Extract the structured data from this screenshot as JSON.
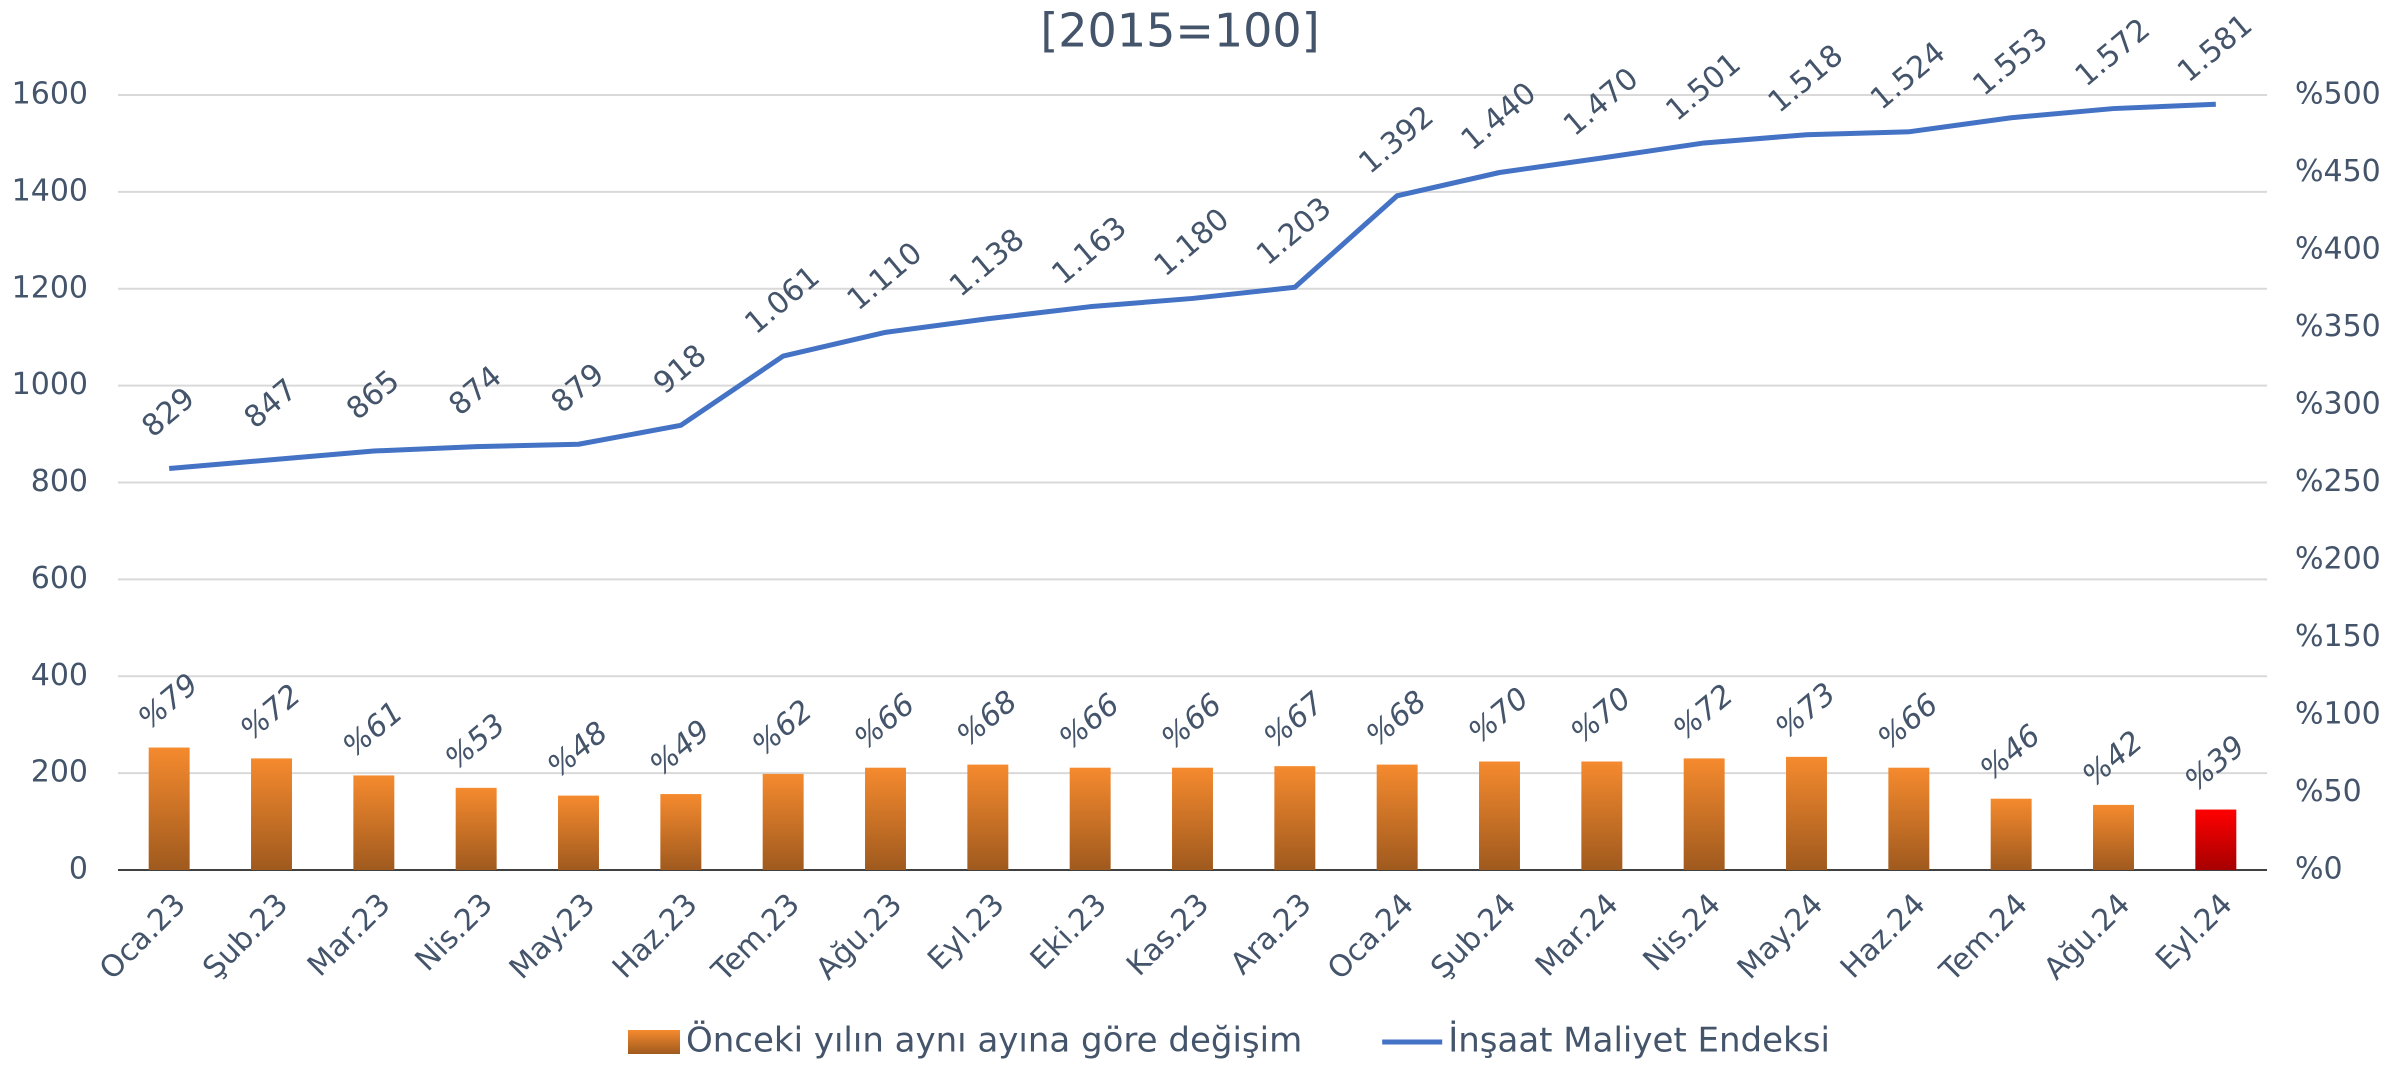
{
  "chart_data": {
    "type": "combo",
    "title": "[2015=100]",
    "categories": [
      "Oca.23",
      "Şub.23",
      "Mar.23",
      "Nis.23",
      "May.23",
      "Haz.23",
      "Tem.23",
      "Ağu.23",
      "Eyl.23",
      "Eki.23",
      "Kas.23",
      "Ara.23",
      "Oca.24",
      "Şub.24",
      "Mar.24",
      "Nis.24",
      "May.24",
      "Haz.24",
      "Tem.24",
      "Ağu.24",
      "Eyl.24"
    ],
    "ylim": [
      0,
      1600
    ],
    "yticks": [
      0,
      200,
      400,
      600,
      800,
      1000,
      1200,
      1400,
      1600
    ],
    "y2lim": [
      0,
      500
    ],
    "y2ticks": [
      {
        "value": 0,
        "label": "%0"
      },
      {
        "value": 50,
        "label": "%50"
      },
      {
        "value": 100,
        "label": "%100"
      },
      {
        "value": 150,
        "label": "%150"
      },
      {
        "value": 200,
        "label": "%200"
      },
      {
        "value": 250,
        "label": "%250"
      },
      {
        "value": 300,
        "label": "%300"
      },
      {
        "value": 350,
        "label": "%350"
      },
      {
        "value": 400,
        "label": "%400"
      },
      {
        "value": 450,
        "label": "%450"
      },
      {
        "value": 500,
        "label": "%500"
      }
    ],
    "grid": true,
    "legend": "bottom",
    "series": [
      {
        "name": "Önceki yılın aynı ayına göre değişim",
        "type": "bar",
        "axis": "y2",
        "color": "#f58a2e",
        "colors": [
          "#f58a2e",
          "#f58a2e",
          "#f58a2e",
          "#f58a2e",
          "#f58a2e",
          "#f58a2e",
          "#f58a2e",
          "#f58a2e",
          "#f58a2e",
          "#f58a2e",
          "#f58a2e",
          "#f58a2e",
          "#f58a2e",
          "#f58a2e",
          "#f58a2e",
          "#f58a2e",
          "#f58a2e",
          "#f58a2e",
          "#f58a2e",
          "#f58a2e",
          "#ff0000"
        ],
        "values": [
          79,
          72,
          61,
          53,
          48,
          49,
          62,
          66,
          68,
          66,
          66,
          67,
          68,
          70,
          70,
          72,
          73,
          66,
          46,
          42,
          39
        ],
        "value_labels": [
          "%79",
          "%72",
          "%61",
          "%53",
          "%48",
          "%49",
          "%62",
          "%66",
          "%68",
          "%66",
          "%66",
          "%67",
          "%68",
          "%70",
          "%70",
          "%72",
          "%73",
          "%66",
          "%46",
          "%42",
          "%39"
        ]
      },
      {
        "name": "İnşaat Maliyet Endeksi",
        "type": "line",
        "color": "#4472c4",
        "values": [
          829,
          847,
          865,
          874,
          879,
          918,
          1061,
          1110,
          1138,
          1163,
          1180,
          1203,
          1392,
          1440,
          1470,
          1501,
          1518,
          1524,
          1553,
          1572,
          1581
        ],
        "value_labels": [
          "829",
          "847",
          "865",
          "874",
          "879",
          "918",
          "1.061",
          "1.110",
          "1.138",
          "1.163",
          "1.180",
          "1.203",
          "1.392",
          "1.440",
          "1.470",
          "1.501",
          "1.518",
          "1.524",
          "1.553",
          "1.572",
          "1.581"
        ]
      }
    ]
  }
}
